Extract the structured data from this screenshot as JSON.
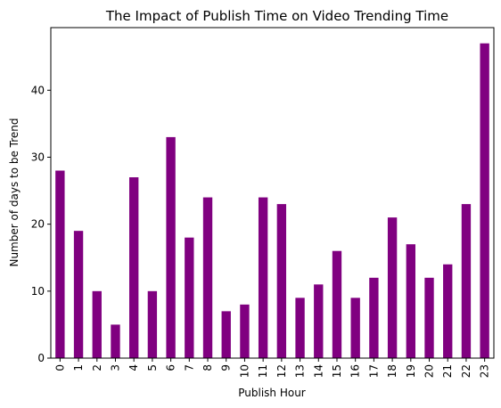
{
  "chart_data": {
    "type": "bar",
    "title": "The Impact of Publish Time on Video Trending Time",
    "xlabel": "Publish Hour",
    "ylabel": "Number of days to be Trend",
    "categories": [
      "0",
      "1",
      "2",
      "3",
      "4",
      "5",
      "6",
      "7",
      "8",
      "9",
      "10",
      "11",
      "12",
      "13",
      "14",
      "15",
      "16",
      "17",
      "18",
      "19",
      "20",
      "21",
      "22",
      "23"
    ],
    "values": [
      28,
      19,
      10,
      5,
      27,
      10,
      33,
      18,
      24,
      7,
      8,
      24,
      23,
      9,
      11,
      16,
      9,
      12,
      21,
      17,
      12,
      14,
      23,
      47
    ],
    "ylim": [
      0,
      49.35
    ],
    "yticks": [
      0,
      10,
      20,
      30,
      40
    ],
    "bar_color": "#800080",
    "grid": false,
    "legend": "none"
  }
}
